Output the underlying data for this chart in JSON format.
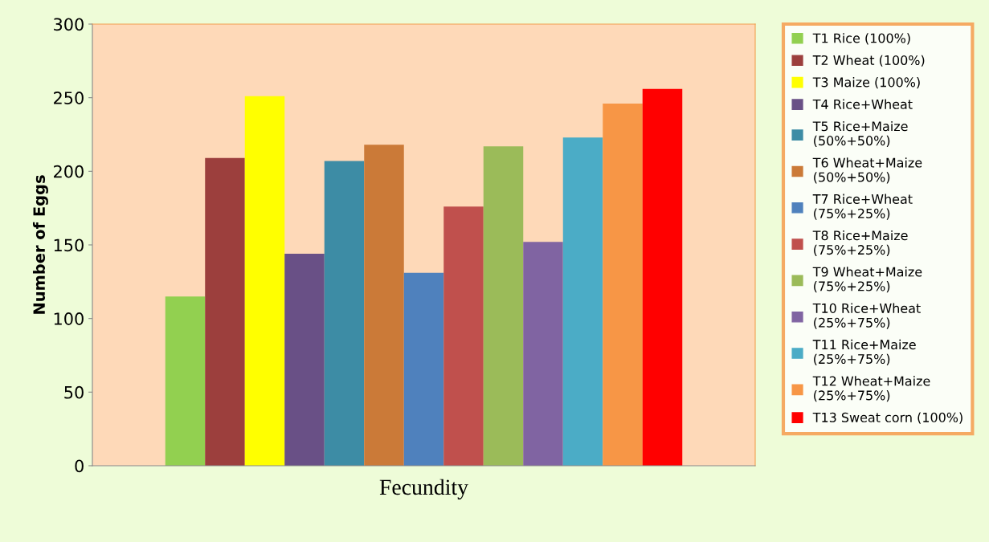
{
  "chart_data": {
    "type": "bar",
    "ylabel": "Number of Eggs",
    "categories": [
      "Fecundity"
    ],
    "series": [
      {
        "name": "T1 Rice (100%)",
        "color": "#92d050",
        "values": [
          115
        ]
      },
      {
        "name": "T2 Wheat (100%)",
        "color": "#9c3f3d",
        "values": [
          209
        ]
      },
      {
        "name": "T3 Maize (100%)",
        "color": "#ffff00",
        "values": [
          251
        ]
      },
      {
        "name": "T4 Rice+Wheat",
        "color": "#695086",
        "values": [
          144
        ]
      },
      {
        "name": "T5 Rice+Maize (50%+50%)",
        "color": "#3d8ca5",
        "values": [
          207
        ]
      },
      {
        "name": "T6 Wheat+Maize (50%+50%)",
        "color": "#cb7a38",
        "values": [
          218
        ]
      },
      {
        "name": "T7 Rice+Wheat (75%+25%)",
        "color": "#4f81bd",
        "values": [
          131
        ]
      },
      {
        "name": "T8 Rice+Maize (75%+25%)",
        "color": "#c0504d",
        "values": [
          176
        ]
      },
      {
        "name": "T9 Wheat+Maize (75%+25%)",
        "color": "#9bbb59",
        "values": [
          217
        ]
      },
      {
        "name": "T10 Rice+Wheat (25%+75%)",
        "color": "#8064a2",
        "values": [
          152
        ]
      },
      {
        "name": "T11 Rice+Maize (25%+75%)",
        "color": "#4bacc6",
        "values": [
          223
        ]
      },
      {
        "name": "T12 Wheat+Maize (25%+75%)",
        "color": "#f79646",
        "values": [
          246
        ]
      },
      {
        "name": "T13 Sweat corn (100%)",
        "color": "#ff0000",
        "values": [
          256
        ]
      }
    ],
    "ylim": [
      0,
      300
    ],
    "yticks": [
      0,
      50,
      100,
      150,
      200,
      250,
      300
    ],
    "grid": false,
    "legend": "right"
  }
}
